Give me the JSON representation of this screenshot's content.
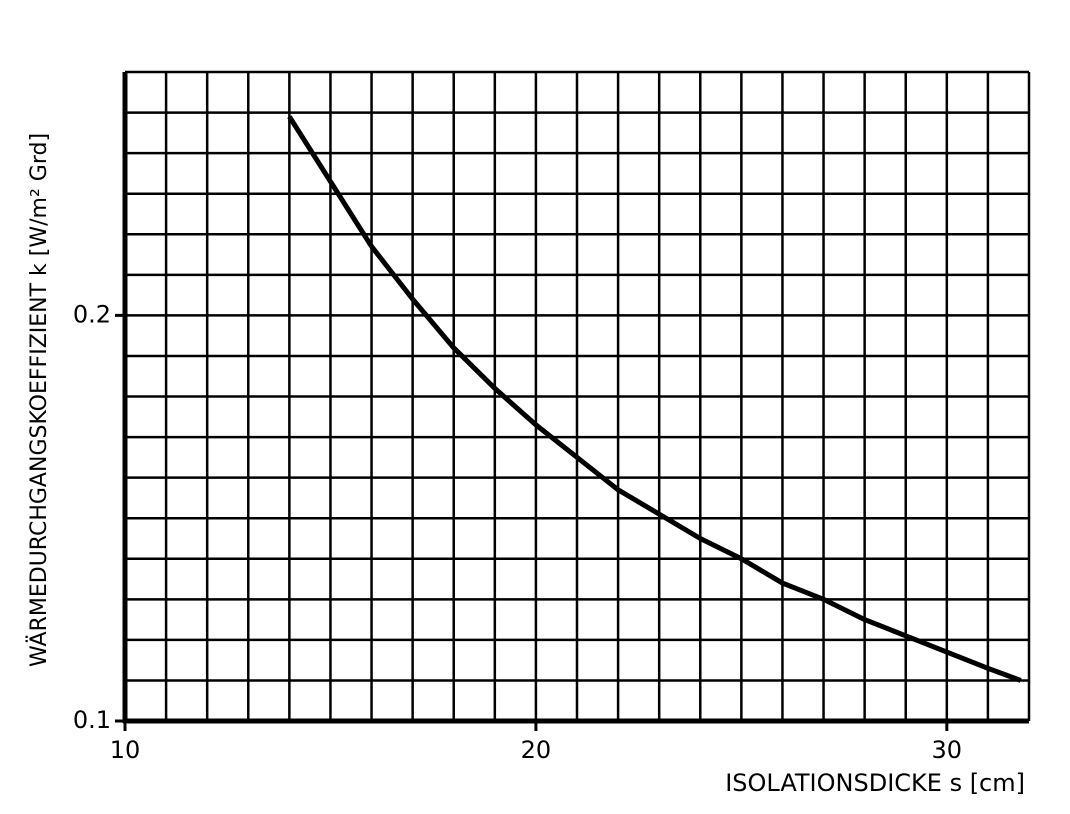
{
  "chart_data": {
    "type": "line",
    "x_label": "ISOLATIONSDICKE s [cm]",
    "y_label": "WÄRMEDURCHGANGSKOEFFIZIENT k [W/m² Grd]",
    "x": [
      14,
      15,
      16,
      17,
      18,
      19,
      20,
      21,
      22,
      23,
      24,
      25,
      26,
      27,
      28,
      29,
      30,
      31,
      31.8
    ],
    "values": [
      0.249,
      0.233,
      0.217,
      0.204,
      0.192,
      0.182,
      0.173,
      0.165,
      0.157,
      0.151,
      0.145,
      0.14,
      0.134,
      0.13,
      0.125,
      0.121,
      0.117,
      0.113,
      0.11
    ],
    "color": "#000000",
    "xlim": [
      10,
      32
    ],
    "ylim": [
      0.1,
      0.26
    ],
    "xticks": [
      10,
      20,
      30
    ],
    "yticks": [
      {
        "value": 0.1,
        "label": "0.1"
      },
      {
        "value": 0.2,
        "label": "0.2"
      }
    ],
    "grid": true,
    "x_minor_ticks": [
      11,
      12,
      13,
      14,
      15,
      16,
      17,
      18,
      19,
      20,
      21,
      22,
      23,
      24,
      25,
      26,
      27,
      28,
      29,
      30,
      31,
      32
    ],
    "y_minor_ticks": [
      0.11,
      0.12,
      0.13,
      0.14,
      0.15,
      0.16,
      0.17,
      0.18,
      0.19,
      0.2,
      0.21,
      0.22,
      0.23,
      0.24,
      0.25,
      0.26
    ]
  }
}
